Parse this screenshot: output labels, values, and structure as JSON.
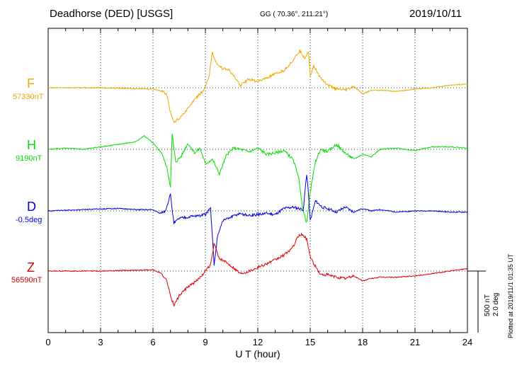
{
  "header": {
    "station": "Deadhorse (DED)  [USGS]",
    "coords": "GG ( 70.36°, 211.21°)",
    "date": "2019/10/11"
  },
  "plotted_note": "Plotted at 2019/11/1 01:35 UT",
  "scale_bar": {
    "nt_label": "500 nT",
    "deg_label": "2.0 deg",
    "value_nt": 500,
    "value_deg": 2.0
  },
  "colors": {
    "F": "#f0a800",
    "H": "#00e000",
    "D": "#0000e0",
    "Z": "#e00000"
  },
  "chart_data": {
    "type": "line",
    "title": "Deadhorse (DED)  [USGS]",
    "xlabel": "U T (hour)",
    "ylabel": "",
    "xlim": [
      0,
      24
    ],
    "x_ticks": [
      "0",
      "3",
      "6",
      "9",
      "12",
      "15",
      "18",
      "21",
      "24"
    ],
    "grid": true,
    "series": [
      {
        "name": "F",
        "baseline_label": "57330nT",
        "baseline": 57330,
        "unit": "nT",
        "points": [
          [
            0,
            0
          ],
          [
            3,
            0
          ],
          [
            6,
            -10
          ],
          [
            6.6,
            -30
          ],
          [
            6.8,
            -60
          ],
          [
            7.0,
            -200
          ],
          [
            7.2,
            -280
          ],
          [
            7.5,
            -250
          ],
          [
            7.8,
            -200
          ],
          [
            8.1,
            -150
          ],
          [
            8.5,
            -80
          ],
          [
            8.9,
            -20
          ],
          [
            9.2,
            80
          ],
          [
            9.4,
            290
          ],
          [
            9.6,
            200
          ],
          [
            10.0,
            160
          ],
          [
            10.3,
            150
          ],
          [
            10.6,
            100
          ],
          [
            11.0,
            20
          ],
          [
            11.5,
            70
          ],
          [
            12.0,
            50
          ],
          [
            12.5,
            80
          ],
          [
            13.0,
            110
          ],
          [
            13.5,
            140
          ],
          [
            14.0,
            220
          ],
          [
            14.4,
            300
          ],
          [
            14.7,
            240
          ],
          [
            14.9,
            300
          ],
          [
            15.0,
            90
          ],
          [
            15.2,
            180
          ],
          [
            15.5,
            100
          ],
          [
            16.0,
            20
          ],
          [
            16.5,
            -10
          ],
          [
            17.0,
            -20
          ],
          [
            17.5,
            10
          ],
          [
            18.0,
            -50
          ],
          [
            18.5,
            -20
          ],
          [
            19,
            -20
          ],
          [
            20,
            -30
          ],
          [
            21,
            -10
          ],
          [
            22,
            0
          ],
          [
            23,
            20
          ],
          [
            24,
            30
          ]
        ]
      },
      {
        "name": "H",
        "baseline_label": "9190nT",
        "baseline": 9190,
        "unit": "nT",
        "points": [
          [
            0,
            0
          ],
          [
            1,
            10
          ],
          [
            2,
            0
          ],
          [
            3,
            20
          ],
          [
            4,
            40
          ],
          [
            5,
            60
          ],
          [
            5.5,
            110
          ],
          [
            6.0,
            50
          ],
          [
            6.5,
            -30
          ],
          [
            6.8,
            -150
          ],
          [
            7.0,
            -300
          ],
          [
            7.1,
            120
          ],
          [
            7.3,
            -100
          ],
          [
            7.6,
            -60
          ],
          [
            8.0,
            50
          ],
          [
            8.4,
            -30
          ],
          [
            8.7,
            10
          ],
          [
            9.0,
            -120
          ],
          [
            9.4,
            -80
          ],
          [
            9.8,
            -200
          ],
          [
            10.2,
            -50
          ],
          [
            10.6,
            10
          ],
          [
            11.0,
            0
          ],
          [
            11.5,
            -20
          ],
          [
            12.0,
            10
          ],
          [
            12.5,
            -40
          ],
          [
            13.0,
            -30
          ],
          [
            13.5,
            -10
          ],
          [
            14.0,
            -80
          ],
          [
            14.3,
            -200
          ],
          [
            14.6,
            -500
          ],
          [
            14.8,
            -600
          ],
          [
            15.0,
            -350
          ],
          [
            15.3,
            -100
          ],
          [
            15.6,
            0
          ],
          [
            16.0,
            -20
          ],
          [
            16.5,
            40
          ],
          [
            17.0,
            -30
          ],
          [
            17.5,
            -80
          ],
          [
            18.0,
            -40
          ],
          [
            18.5,
            -60
          ],
          [
            19.0,
            0
          ],
          [
            20.0,
            10
          ],
          [
            21.0,
            -10
          ],
          [
            22.0,
            20
          ],
          [
            23.0,
            20
          ],
          [
            24.0,
            10
          ]
        ]
      },
      {
        "name": "D",
        "baseline_label": "-0.5deg",
        "baseline": -0.5,
        "unit": "deg",
        "points": [
          [
            0,
            0
          ],
          [
            2,
            10
          ],
          [
            4,
            20
          ],
          [
            5,
            10
          ],
          [
            6,
            10
          ],
          [
            6.4,
            -20
          ],
          [
            6.7,
            0
          ],
          [
            7.0,
            130
          ],
          [
            7.2,
            -100
          ],
          [
            7.5,
            -60
          ],
          [
            8.0,
            -50
          ],
          [
            8.5,
            -40
          ],
          [
            9.0,
            -30
          ],
          [
            9.3,
            20
          ],
          [
            9.5,
            -440
          ],
          [
            9.7,
            -200
          ],
          [
            10.0,
            -80
          ],
          [
            10.5,
            -50
          ],
          [
            11.0,
            -20
          ],
          [
            11.5,
            -40
          ],
          [
            12.0,
            -30
          ],
          [
            12.5,
            -20
          ],
          [
            13.0,
            -30
          ],
          [
            13.5,
            20
          ],
          [
            14.0,
            30
          ],
          [
            14.3,
            20
          ],
          [
            14.6,
            10
          ],
          [
            14.8,
            300
          ],
          [
            14.9,
            150
          ],
          [
            15.0,
            -80
          ],
          [
            15.3,
            80
          ],
          [
            15.7,
            30
          ],
          [
            16.0,
            20
          ],
          [
            16.5,
            -10
          ],
          [
            17.0,
            30
          ],
          [
            17.5,
            -10
          ],
          [
            18.0,
            20
          ],
          [
            18.5,
            0
          ],
          [
            19.0,
            10
          ],
          [
            20.0,
            -10
          ],
          [
            21.0,
            0
          ],
          [
            22.0,
            0
          ],
          [
            23.0,
            -10
          ],
          [
            24.0,
            -10
          ]
        ]
      },
      {
        "name": "Z",
        "baseline_label": "56590nT",
        "baseline": 56590,
        "unit": "nT",
        "points": [
          [
            0,
            0
          ],
          [
            3,
            0
          ],
          [
            6,
            10
          ],
          [
            6.5,
            -20
          ],
          [
            6.8,
            -80
          ],
          [
            7.0,
            -200
          ],
          [
            7.2,
            -280
          ],
          [
            7.5,
            -200
          ],
          [
            8.0,
            -130
          ],
          [
            8.5,
            -80
          ],
          [
            9.0,
            0
          ],
          [
            9.3,
            50
          ],
          [
            9.5,
            220
          ],
          [
            9.8,
            100
          ],
          [
            10.2,
            70
          ],
          [
            10.6,
            30
          ],
          [
            11.0,
            -20
          ],
          [
            11.5,
            0
          ],
          [
            12.0,
            30
          ],
          [
            12.5,
            60
          ],
          [
            13.0,
            90
          ],
          [
            13.5,
            130
          ],
          [
            14.0,
            190
          ],
          [
            14.3,
            280
          ],
          [
            14.5,
            300
          ],
          [
            14.8,
            260
          ],
          [
            15.0,
            120
          ],
          [
            15.2,
            60
          ],
          [
            15.6,
            -30
          ],
          [
            16.0,
            -30
          ],
          [
            16.5,
            -50
          ],
          [
            17.0,
            -60
          ],
          [
            17.5,
            -40
          ],
          [
            18.0,
            -80
          ],
          [
            18.5,
            -60
          ],
          [
            19.0,
            -50
          ],
          [
            20.0,
            -50
          ],
          [
            21.0,
            -40
          ],
          [
            22.0,
            -20
          ],
          [
            23.0,
            0
          ],
          [
            24.0,
            20
          ]
        ]
      }
    ]
  }
}
